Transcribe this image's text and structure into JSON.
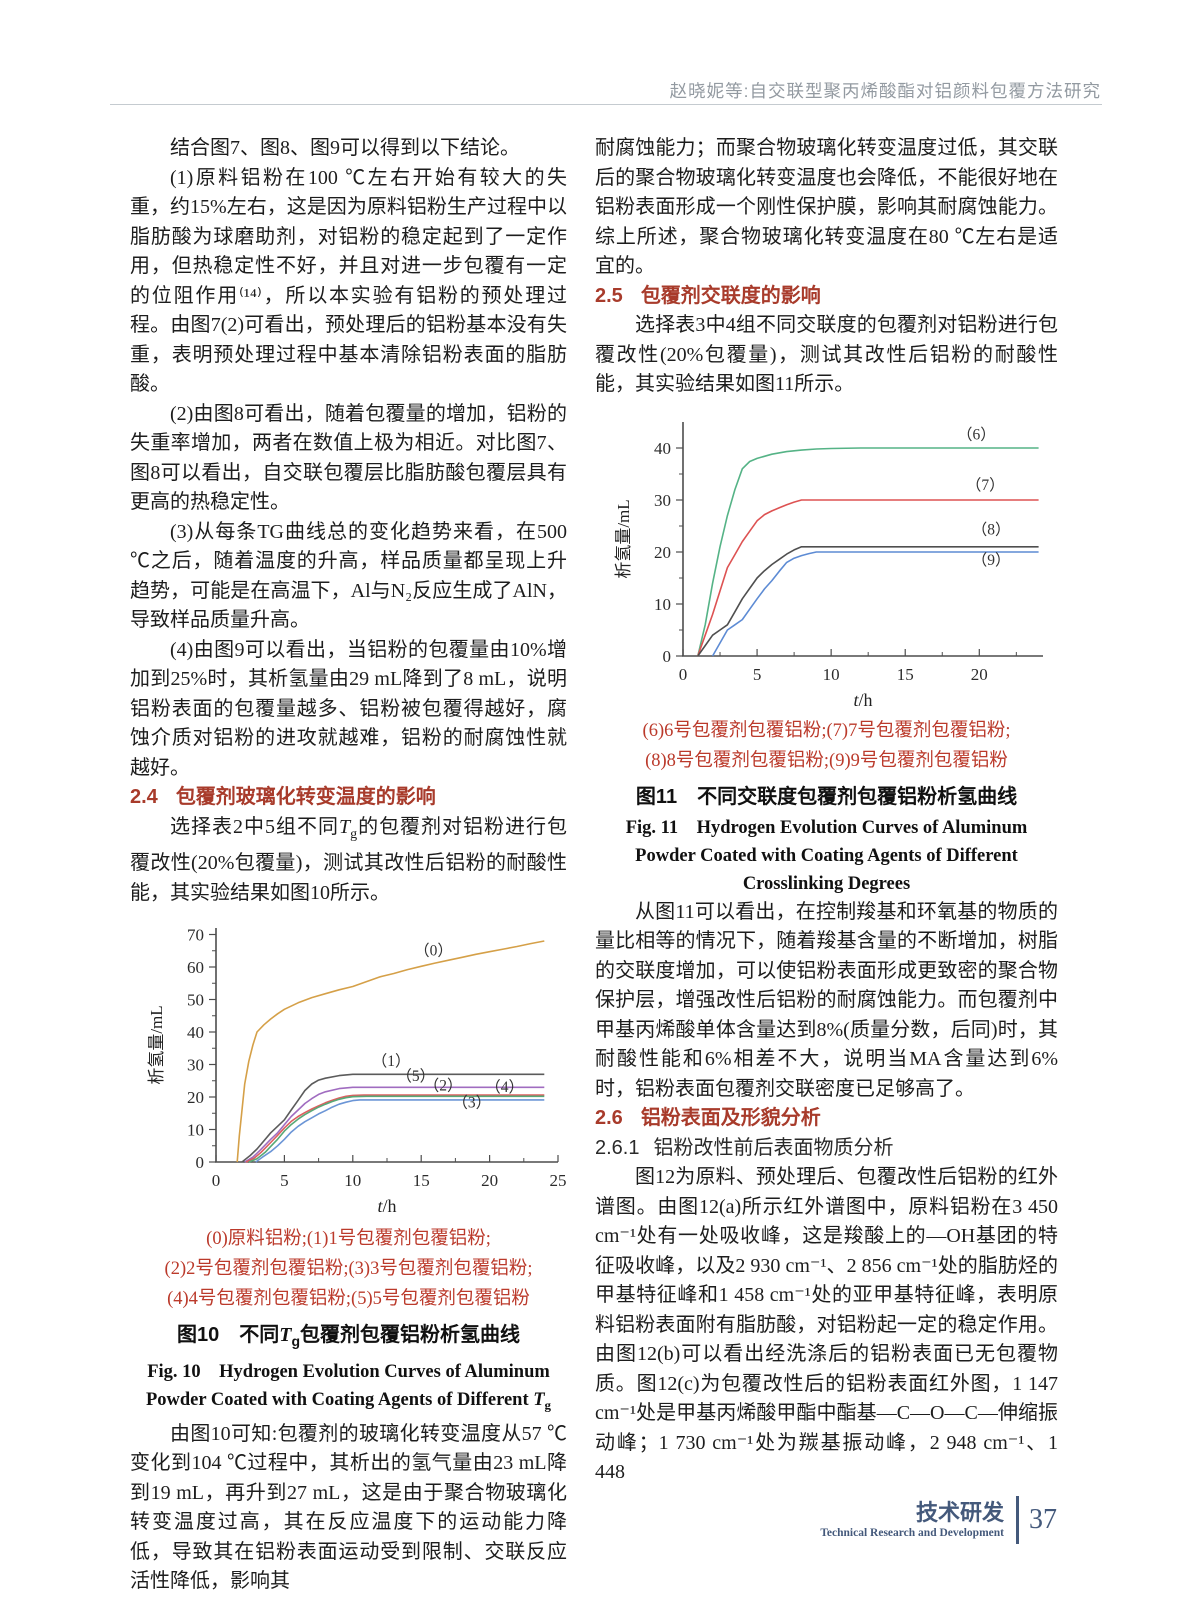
{
  "header": {
    "running_title": "赵晓妮等:自交联型聚丙烯酸酯对铝颜料包覆方法研究"
  },
  "left": {
    "paras": [
      "结合图7、图8、图9可以得到以下结论。",
      "(1)原料铝粉在100 ℃左右开始有较大的失重，约15%左右，这是因为原料铝粉生产过程中以脂肪酸为球磨助剂，对铝粉的稳定起到了一定作用，但热稳定性不好，并且对进一步包覆有一定的位阻作用⁽¹⁴⁾，所以本实验有铝粉的预处理过程。由图7(2)可看出，预处理后的铝粉基本没有失重，表明预处理过程中基本清除铝粉表面的脂肪酸。",
      "(2)由图8可看出，随着包覆量的增加，铝粉的失重率增加，两者在数值上极为相近。对比图7、图8可以看出，自交联包覆层比脂肪酸包覆层具有更高的热稳定性。",
      "(3)从每条TG曲线总的变化趋势来看，在500 ℃之后，随着温度的升高，样品质量都呈现上升趋势，可能是在高温下，Al与N₂反应生成了AlN，导致样品质量升高。",
      "(4)由图9可以看出，当铝粉的包覆量由10%增加到25%时，其析氢量由29 mL降到了8 mL，说明铝粉表面的包覆量越多、铝粉被包覆得越好，腐蚀介质对铝粉的进攻就越难，铝粉的耐腐蚀性就越好。"
    ],
    "heading_2_4": {
      "num": "2.4",
      "title": "包覆剂玻璃化转变温度的影响"
    },
    "para_tg_before": "选择表2中5组不同",
    "para_tg_T": "T",
    "para_tg_sub": "g",
    "para_tg_after": "的包覆剂对铝粉进行包覆改性(20%包覆量)，测试其改性后铝粉的耐酸性能，其实验结果如图10所示。",
    "para_after_fig10": "由图10可知:包覆剂的玻璃化转变温度从57 ℃变化到104 ℃过程中，其析出的氢气量由23 mL降到19 mL，再升到27 mL，这是由于聚合物玻璃化转变温度过高，其在反应温度下的运动能力降低，导致其在铝粉表面运动受到限制、交联反应活性降低，影响其"
  },
  "right": {
    "para_cont": "耐腐蚀能力；而聚合物玻璃化转变温度过低，其交联后的聚合物玻璃化转变温度也会降低，不能很好地在铝粉表面形成一个刚性保护膜，影响其耐腐蚀能力。综上所述，聚合物玻璃化转变温度在80 ℃左右是适宜的。",
    "heading_2_5": {
      "num": "2.5",
      "title": "包覆剂交联度的影响"
    },
    "para_2_5": "选择表3中4组不同交联度的包覆剂对铝粉进行包覆改性(20%包覆量)，测试其改性后铝粉的耐酸性能，其实验结果如图11所示。",
    "para_after_fig11": "从图11可以看出，在控制羧基和环氧基的物质的量比相等的情况下，随着羧基含量的不断增加，树脂的交联度增加，可以使铝粉表面形成更致密的聚合物保护层，增强改性后铝粉的耐腐蚀能力。而包覆剂中甲基丙烯酸单体含量达到8%(质量分数，后同)时，其耐酸性能和6%相差不大，说明当MA含量达到6%时，铝粉表面包覆剂交联密度已足够高了。",
    "heading_2_6": {
      "num": "2.6",
      "title": "铝粉表面及形貌分析"
    },
    "heading_2_6_1": {
      "num": "2.6.1",
      "title": "铝粉改性前后表面物质分析"
    },
    "para_2_6_1": "图12为原料、预处理后、包覆改性后铝粉的红外谱图。由图12(a)所示红外谱图中，原料铝粉在3 450 cm⁻¹处有一处吸收峰，这是羧酸上的—OH基团的特征吸收峰，以及2 930 cm⁻¹、2 856 cm⁻¹处的脂肪烃的甲基特征峰和1 458 cm⁻¹处的亚甲基特征峰，表明原料铝粉表面附有脂肪酸，对铝粉起一定的稳定作用。由图12(b)可以看出经洗涤后的铝粉表面已无包覆物质。图12(c)为包覆改性后的铝粉表面红外图，1 147 cm⁻¹处是甲基丙烯酸甲酯中酯基—C—O—C—伸缩振动峰；1 730 cm⁻¹处为羰基振动峰，2 948 cm⁻¹、1 448"
  },
  "fig10": {
    "legend_lines": [
      "(0)原料铝粉;(1)1号包覆剂包覆铝粉;",
      "(2)2号包覆剂包覆铝粉;(3)3号包覆剂包覆铝粉;",
      "(4)4号包覆剂包覆铝粉;(5)5号包覆剂包覆铝粉"
    ],
    "cap_zh_prefix": "图10　不同",
    "cap_T": "T",
    "cap_sub": "g",
    "cap_zh_suffix": "包覆剂包覆铝粉析氢曲线",
    "cap_en_main": "Fig. 10　Hydrogen Evolution Curves of Aluminum Powder Coated with Coating Agents of Different "
  },
  "fig11": {
    "legend_lines": [
      "(6)6号包覆剂包覆铝粉;(7)7号包覆剂包覆铝粉;",
      "(8)8号包覆剂包覆铝粉;(9)9号包覆剂包覆铝粉"
    ],
    "cap_zh": "图11　不同交联度包覆剂包覆铝粉析氢曲线",
    "cap_en": "Fig. 11　Hydrogen Evolution Curves of Aluminum Powder Coated with Coating Agents of Different Crosslinking Degrees"
  },
  "footer": {
    "zh": "技术研发",
    "en": "Technical Research and Development",
    "page": "37"
  },
  "chart_data": [
    {
      "id": "fig10",
      "type": "line",
      "title": "图10 不同Tg包覆剂包覆铝粉析氢曲线",
      "xlabel": "t/h",
      "ylabel": "析氢量/mL",
      "xlim": [
        0,
        25
      ],
      "ylim": [
        0,
        72
      ],
      "xticks": [
        0,
        5,
        10,
        15,
        20,
        25
      ],
      "xminor": [
        2.5,
        7.5,
        12.5,
        17.5,
        22.5
      ],
      "yticks": [
        0,
        10,
        20,
        30,
        40,
        50,
        60,
        70
      ],
      "yminor": [
        5,
        15,
        25,
        35,
        45,
        55,
        65
      ],
      "axis_color": "#4d4d4d",
      "grid": false,
      "size": [
        437,
        300
      ],
      "plot": {
        "l": 86,
        "r": 428,
        "t": 12,
        "b": 246
      },
      "series": [
        {
          "name": "（0）",
          "color": "#d5a048",
          "label_at": [
            15.9,
            63.5
          ],
          "points": [
            [
              1.55,
              0
            ],
            [
              1.7,
              8
            ],
            [
              1.9,
              16
            ],
            [
              2.1,
              24
            ],
            [
              2.4,
              31
            ],
            [
              2.7,
              36
            ],
            [
              3,
              40
            ],
            [
              3.5,
              42.2
            ],
            [
              4,
              44
            ],
            [
              4.5,
              45.6
            ],
            [
              5,
              47
            ],
            [
              6,
              49
            ],
            [
              7,
              50.6
            ],
            [
              8,
              51.8
            ],
            [
              9,
              53
            ],
            [
              10,
              54
            ],
            [
              11,
              55.5
            ],
            [
              12,
              57
            ],
            [
              13,
              58
            ],
            [
              14,
              59.2
            ],
            [
              15,
              60.2
            ],
            [
              16,
              61.2
            ],
            [
              17,
              62.1
            ],
            [
              18,
              63
            ],
            [
              19,
              63.9
            ],
            [
              20,
              64.7
            ],
            [
              21,
              65.5
            ],
            [
              22,
              66.3
            ],
            [
              23,
              67.2
            ],
            [
              24,
              68
            ]
          ]
        },
        {
          "name": "（1）",
          "color": "#5b5b5b",
          "label_at": [
            12.8,
            29.6
          ],
          "points": [
            [
              1.9,
              0
            ],
            [
              2.5,
              2
            ],
            [
              3,
              4
            ],
            [
              3.5,
              6.5
            ],
            [
              4,
              9
            ],
            [
              4.5,
              11
            ],
            [
              5,
              13
            ],
            [
              5.5,
              16
            ],
            [
              6,
              19
            ],
            [
              6.5,
              22
            ],
            [
              7,
              24
            ],
            [
              7.5,
              25.2
            ],
            [
              8,
              25.8
            ],
            [
              9,
              26.6
            ],
            [
              10,
              27
            ],
            [
              24,
              27
            ]
          ]
        },
        {
          "name": "（5）",
          "color": "#a06cc0",
          "label_at": [
            14.6,
            25.0
          ],
          "points": [
            [
              2.1,
              0
            ],
            [
              2.7,
              1.5
            ],
            [
              3.2,
              3.5
            ],
            [
              4,
              7
            ],
            [
              4.5,
              9
            ],
            [
              5,
              11.5
            ],
            [
              5.5,
              14
            ],
            [
              6,
              16
            ],
            [
              6.5,
              18
            ],
            [
              7,
              19.5
            ],
            [
              7.5,
              20.8
            ],
            [
              8,
              21.6
            ],
            [
              9,
              22.6
            ],
            [
              10,
              23
            ],
            [
              24,
              23
            ]
          ]
        },
        {
          "name": "（2）",
          "color": "#dd5f5f",
          "label_at": [
            16.6,
            22.0
          ],
          "points": [
            [
              2.2,
              0
            ],
            [
              2.8,
              1.2
            ],
            [
              3.3,
              3
            ],
            [
              4,
              6
            ],
            [
              4.5,
              8.2
            ],
            [
              5,
              10.5
            ],
            [
              5.5,
              12.5
            ],
            [
              6,
              14
            ],
            [
              6.5,
              15.2
            ],
            [
              7,
              16.3
            ],
            [
              7.5,
              17.3
            ],
            [
              8,
              18.2
            ],
            [
              8.5,
              19
            ],
            [
              9,
              19.7
            ],
            [
              9.5,
              20.2
            ],
            [
              10,
              20.5
            ],
            [
              10.8,
              20.6
            ],
            [
              24,
              20.6
            ]
          ]
        },
        {
          "name": "（4）",
          "color": "#57a877",
          "label_at": [
            21.1,
            21.6
          ],
          "points": [
            [
              2.4,
              0
            ],
            [
              3,
              1
            ],
            [
              3.6,
              3
            ],
            [
              4,
              4.8
            ],
            [
              4.5,
              7
            ],
            [
              5,
              9.5
            ],
            [
              5.5,
              11.5
            ],
            [
              6,
              13.2
            ],
            [
              6.5,
              14.6
            ],
            [
              7,
              15.8
            ],
            [
              7.5,
              16.9
            ],
            [
              8,
              17.8
            ],
            [
              8.5,
              18.6
            ],
            [
              9,
              19.3
            ],
            [
              9.5,
              19.8
            ],
            [
              10,
              20.1
            ],
            [
              11,
              20.2
            ],
            [
              24,
              20.2
            ]
          ]
        },
        {
          "name": "（3）",
          "color": "#6b95d6",
          "label_at": [
            18.7,
            16.8
          ],
          "points": [
            [
              2.9,
              0
            ],
            [
              3.4,
              1.5
            ],
            [
              4,
              3.2
            ],
            [
              4.5,
              5
            ],
            [
              5,
              7
            ],
            [
              5.5,
              9.2
            ],
            [
              6,
              11
            ],
            [
              6.5,
              12.4
            ],
            [
              7,
              13.6
            ],
            [
              7.5,
              14.8
            ],
            [
              8,
              15.8
            ],
            [
              8.5,
              16.9
            ],
            [
              9,
              17.8
            ],
            [
              9.5,
              18.4
            ],
            [
              10,
              18.9
            ],
            [
              10.5,
              19.1
            ],
            [
              24,
              19.1
            ]
          ]
        }
      ]
    },
    {
      "id": "fig11",
      "type": "line",
      "title": "图11 不同交联度包覆剂包覆铝粉析氢曲线",
      "xlabel": "t/h",
      "ylabel": "析氢量/mL",
      "xlim": [
        0,
        24.3
      ],
      "ylim": [
        0,
        45
      ],
      "xticks": [
        0,
        5,
        10,
        15,
        20
      ],
      "xminor": [
        2.5,
        7.5,
        12.5,
        17.5,
        22.5
      ],
      "yticks": [
        0,
        10,
        20,
        30,
        40
      ],
      "yminor": [
        5,
        15,
        25,
        35
      ],
      "axis_color": "#4d4d4d",
      "grid": false,
      "size": [
        463,
        300
      ],
      "plot": {
        "l": 88,
        "r": 448,
        "t": 14,
        "b": 248
      },
      "series": [
        {
          "name": "（6）",
          "color": "#55b386",
          "label_at": [
            19.8,
            41.6
          ],
          "points": [
            [
              1,
              0
            ],
            [
              1.5,
              6
            ],
            [
              2,
              14
            ],
            [
              2.5,
              21
            ],
            [
              3,
              27
            ],
            [
              3.5,
              32
            ],
            [
              4,
              36
            ],
            [
              4.5,
              37.4
            ],
            [
              5,
              38
            ],
            [
              6,
              38.8
            ],
            [
              7,
              39.3
            ],
            [
              8,
              39.6
            ],
            [
              9,
              39.8
            ],
            [
              10,
              39.9
            ],
            [
              12,
              40
            ],
            [
              24,
              40
            ]
          ]
        },
        {
          "name": "（7）",
          "color": "#dd5252",
          "label_at": [
            20.4,
            31.9
          ],
          "points": [
            [
              1,
              0
            ],
            [
              1.5,
              4
            ],
            [
              2,
              8
            ],
            [
              2.5,
              12.5
            ],
            [
              3,
              17
            ],
            [
              3.5,
              19.5
            ],
            [
              4,
              22
            ],
            [
              4.5,
              24
            ],
            [
              5,
              26
            ],
            [
              5.5,
              27.2
            ],
            [
              6,
              27.9
            ],
            [
              6.5,
              28.5
            ],
            [
              7,
              29.1
            ],
            [
              7.5,
              29.6
            ],
            [
              8,
              30
            ],
            [
              24,
              30
            ]
          ]
        },
        {
          "name": "（8）",
          "color": "#4f4f4f",
          "label_at": [
            20.8,
            23.4
          ],
          "points": [
            [
              1,
              0
            ],
            [
              1.5,
              2
            ],
            [
              2,
              4
            ],
            [
              2.5,
              5
            ],
            [
              3,
              6
            ],
            [
              3.5,
              8.5
            ],
            [
              4,
              11
            ],
            [
              4.5,
              13
            ],
            [
              5,
              15
            ],
            [
              5.5,
              16.4
            ],
            [
              6,
              17.6
            ],
            [
              6.5,
              18.6
            ],
            [
              7,
              19.6
            ],
            [
              7.5,
              20.4
            ],
            [
              8,
              21
            ],
            [
              24,
              21
            ]
          ]
        },
        {
          "name": "（9）",
          "color": "#5d8bd4",
          "label_at": [
            20.8,
            17.5
          ],
          "points": [
            [
              2,
              0
            ],
            [
              2.5,
              2.5
            ],
            [
              3,
              5
            ],
            [
              3.5,
              6
            ],
            [
              4,
              7
            ],
            [
              4.5,
              9
            ],
            [
              5,
              11
            ],
            [
              5.5,
              12.9
            ],
            [
              6,
              14.5
            ],
            [
              6.5,
              16.3
            ],
            [
              7,
              18
            ],
            [
              7.5,
              18.8
            ],
            [
              8,
              19.3
            ],
            [
              8.5,
              19.7
            ],
            [
              9,
              20
            ],
            [
              24,
              20
            ]
          ]
        }
      ]
    }
  ]
}
